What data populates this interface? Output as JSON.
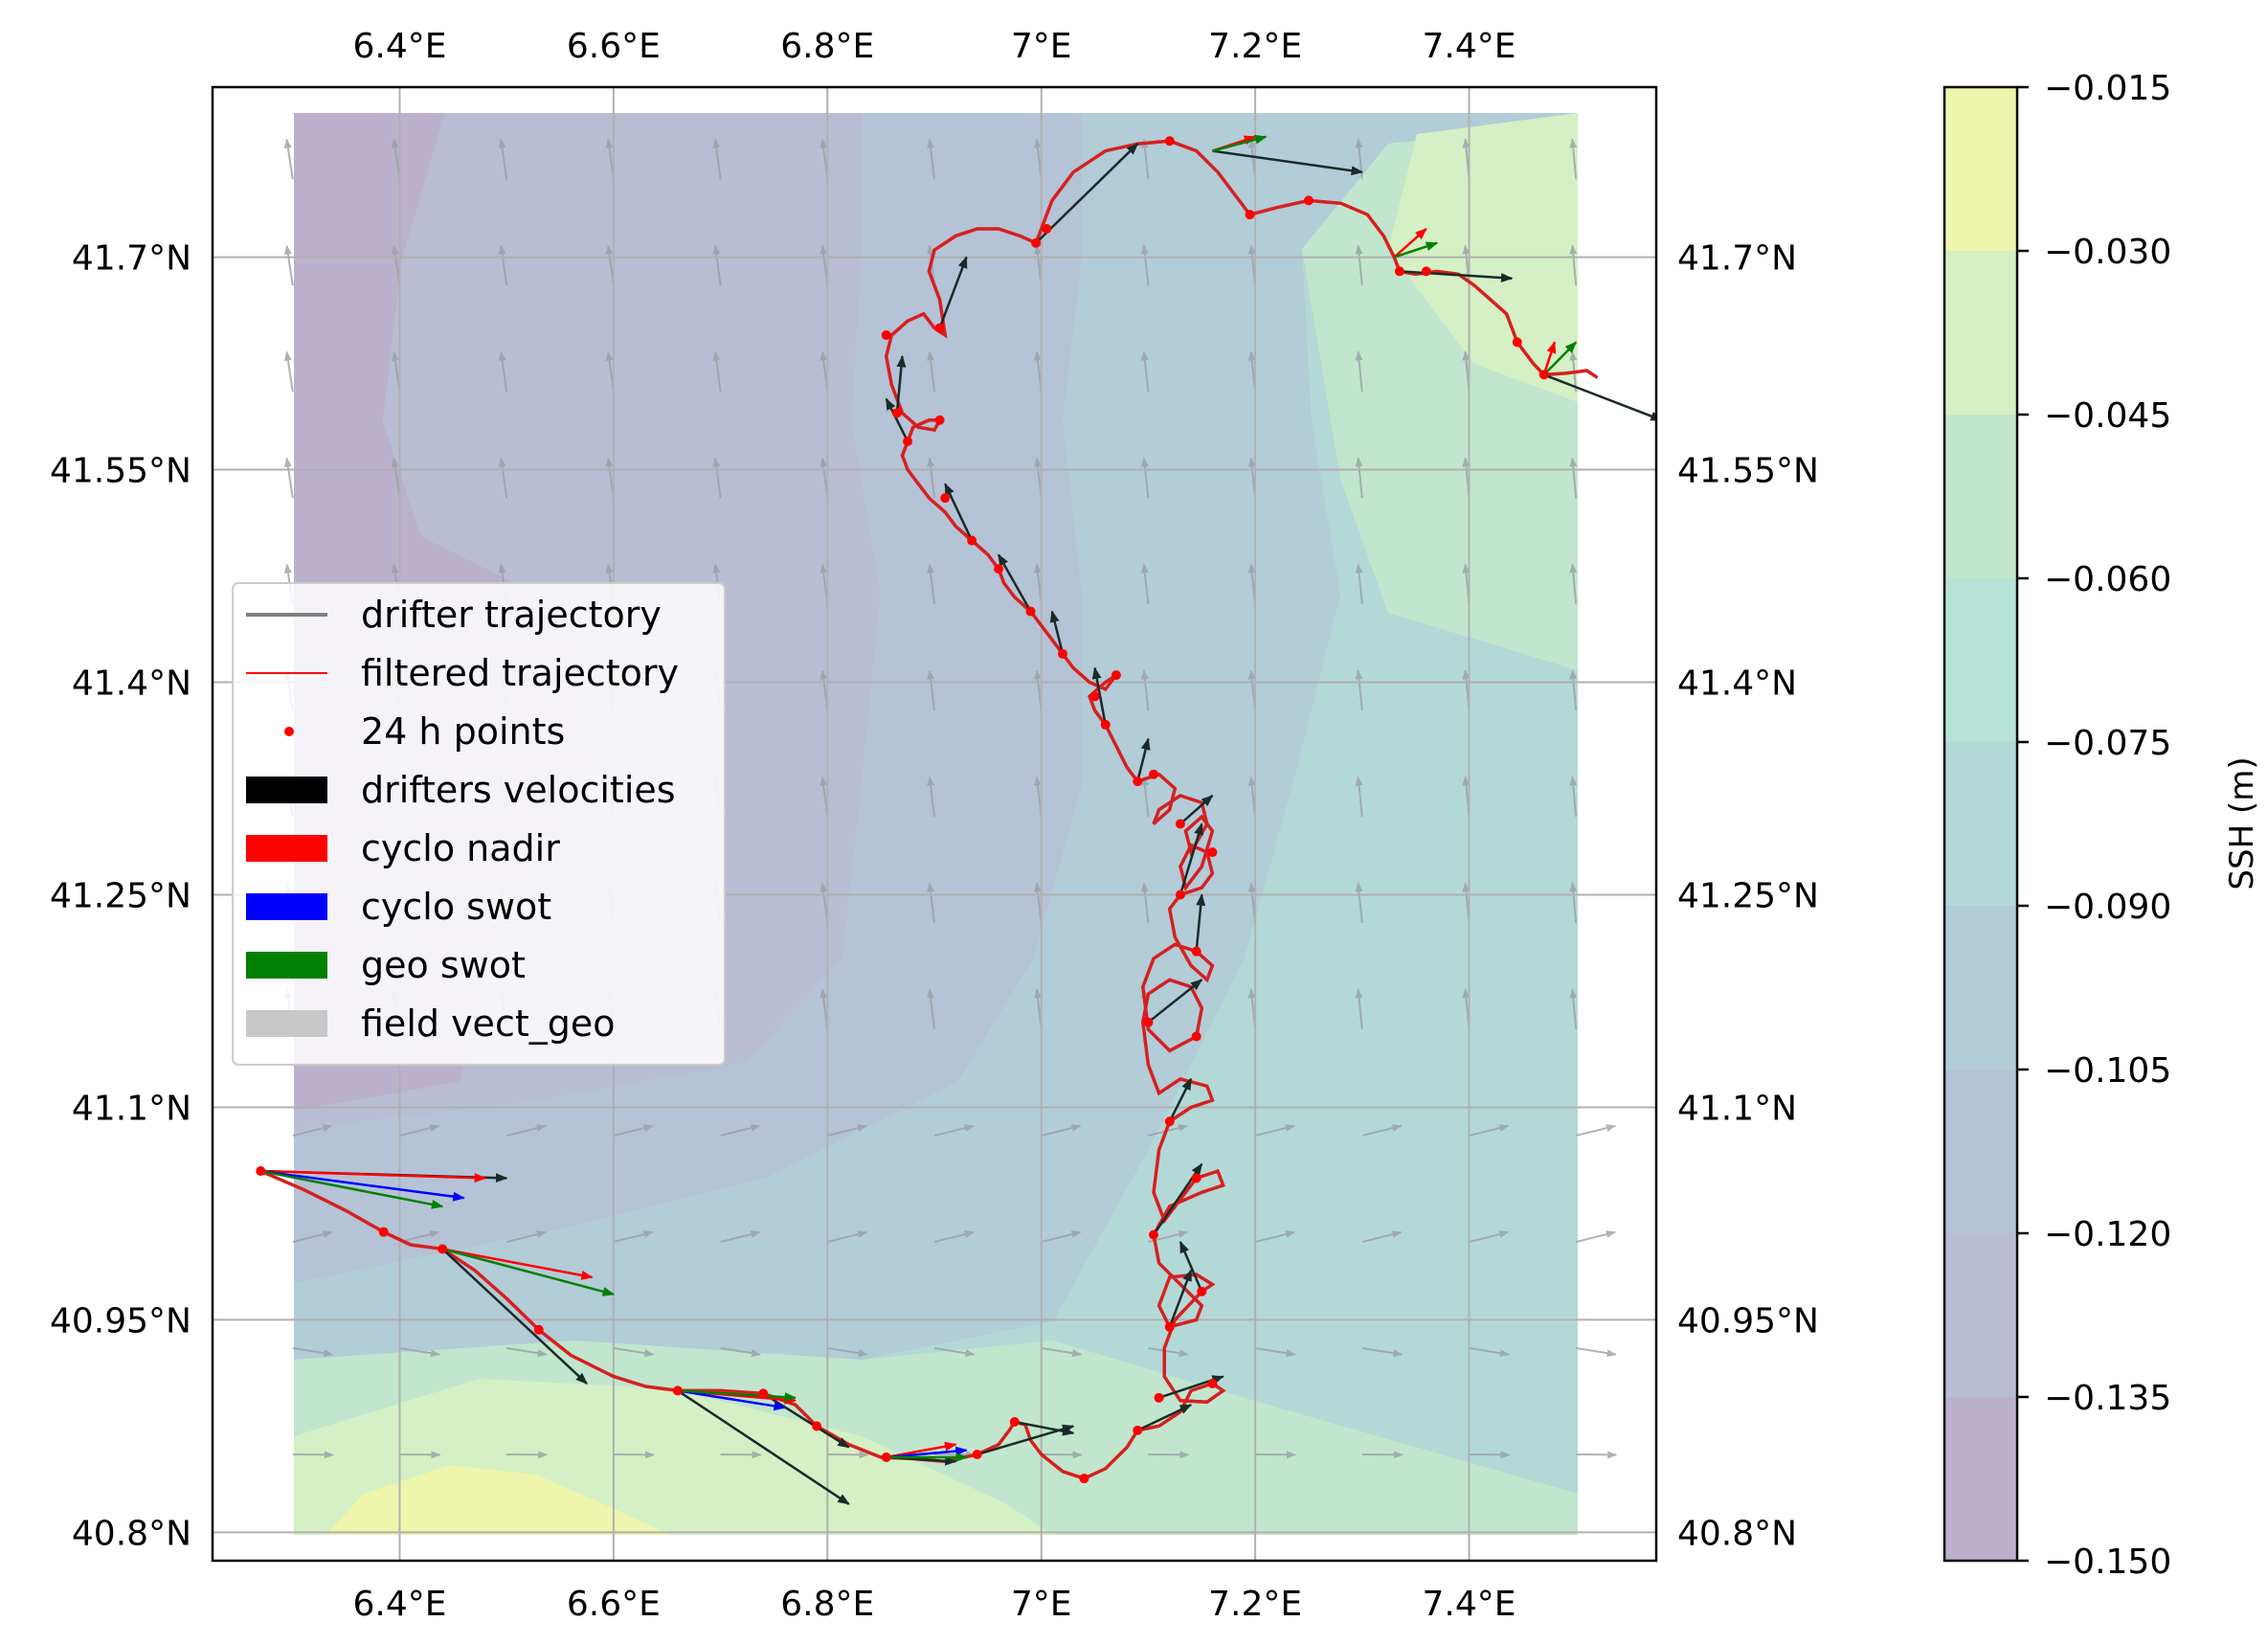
{
  "chart_data": {
    "type": "map",
    "lon_ticks": [
      "6.4°E",
      "6.6°E",
      "6.8°E",
      "7°E",
      "7.2°E",
      "7.4°E"
    ],
    "lon_values": [
      6.4,
      6.6,
      6.8,
      7.0,
      7.2,
      7.4
    ],
    "lat_ticks": [
      "41.7°N",
      "41.55°N",
      "41.4°N",
      "41.25°N",
      "41.1°N",
      "40.95°N",
      "40.8°N"
    ],
    "lat_values": [
      41.7,
      41.55,
      41.4,
      41.25,
      41.1,
      40.95,
      40.8
    ],
    "lon_range": [
      6.225,
      7.575
    ],
    "lat_range": [
      40.78,
      41.82
    ],
    "grid": true,
    "colorbar": {
      "label": "SSH (m)",
      "ticks": [
        "−0.015",
        "−0.030",
        "−0.045",
        "−0.060",
        "−0.075",
        "−0.090",
        "−0.105",
        "−0.120",
        "−0.135",
        "−0.150"
      ],
      "levels": [
        -0.15,
        -0.135,
        -0.12,
        -0.105,
        -0.09,
        -0.075,
        -0.06,
        -0.045,
        -0.03,
        -0.015
      ],
      "colors": [
        "#bbb1cc",
        "#b8bdd3",
        "#b5c3d6",
        "#b2ccd8",
        "#b3d9d6",
        "#b6e2d8",
        "#c1e6cd",
        "#d4f0c4",
        "#eef5ad"
      ]
    },
    "legend": {
      "placement": "center-left",
      "items": [
        {
          "label": "drifter trajectory",
          "color": "#808080",
          "kind": "line"
        },
        {
          "label": "filtered trajectory",
          "color": "#ff0000",
          "kind": "thin-line"
        },
        {
          "label": "24 h points",
          "color": "#ff0000",
          "kind": "dot"
        },
        {
          "label": "drifters velocities",
          "color": "#000000",
          "kind": "patch"
        },
        {
          "label": "cyclo nadir",
          "color": "#ff0000",
          "kind": "patch"
        },
        {
          "label": "cyclo swot",
          "color": "#0000ff",
          "kind": "patch"
        },
        {
          "label": "geo swot",
          "color": "#008000",
          "kind": "patch"
        },
        {
          "label": "field vect_geo",
          "color": "#c8c8c8",
          "kind": "patch"
        }
      ]
    },
    "trajectory": [
      [
        6.27,
        41.055
      ],
      [
        6.31,
        41.042
      ],
      [
        6.35,
        41.027
      ],
      [
        6.385,
        41.012
      ],
      [
        6.41,
        41.003
      ],
      [
        6.44,
        41.0
      ],
      [
        6.47,
        40.985
      ],
      [
        6.5,
        40.965
      ],
      [
        6.53,
        40.943
      ],
      [
        6.56,
        40.925
      ],
      [
        6.6,
        40.91
      ],
      [
        6.63,
        40.903
      ],
      [
        6.66,
        40.9
      ],
      [
        6.7,
        40.9
      ],
      [
        6.74,
        40.898
      ],
      [
        6.77,
        40.89
      ],
      [
        6.79,
        40.875
      ],
      [
        6.82,
        40.862
      ],
      [
        6.85,
        40.853
      ],
      [
        6.88,
        40.852
      ],
      [
        6.91,
        40.85
      ],
      [
        6.94,
        40.855
      ],
      [
        6.96,
        40.862
      ],
      [
        6.97,
        40.872
      ],
      [
        6.975,
        40.878
      ],
      [
        6.985,
        40.876
      ],
      [
        6.99,
        40.865
      ],
      [
        7.0,
        40.855
      ],
      [
        7.02,
        40.843
      ],
      [
        7.04,
        40.838
      ],
      [
        7.06,
        40.845
      ],
      [
        7.08,
        40.86
      ],
      [
        7.09,
        40.872
      ],
      [
        7.11,
        40.875
      ],
      [
        7.13,
        40.885
      ],
      [
        7.14,
        40.9
      ],
      [
        7.16,
        40.905
      ],
      [
        7.17,
        40.9
      ],
      [
        7.155,
        40.892
      ],
      [
        7.13,
        40.893
      ],
      [
        7.115,
        40.91
      ],
      [
        7.115,
        40.93
      ],
      [
        7.125,
        40.95
      ],
      [
        7.15,
        40.97
      ],
      [
        7.16,
        40.975
      ],
      [
        7.145,
        40.982
      ],
      [
        7.12,
        40.98
      ],
      [
        7.11,
        40.96
      ],
      [
        7.12,
        40.945
      ],
      [
        7.145,
        40.95
      ],
      [
        7.15,
        40.96
      ],
      [
        7.13,
        40.975
      ],
      [
        7.11,
        40.99
      ],
      [
        7.105,
        41.01
      ],
      [
        7.12,
        41.03
      ],
      [
        7.15,
        41.04
      ],
      [
        7.17,
        41.045
      ],
      [
        7.165,
        41.055
      ],
      [
        7.145,
        41.05
      ],
      [
        7.13,
        41.035
      ],
      [
        7.115,
        41.02
      ],
      [
        7.105,
        41.04
      ],
      [
        7.11,
        41.07
      ],
      [
        7.12,
        41.09
      ],
      [
        7.14,
        41.1
      ],
      [
        7.16,
        41.105
      ],
      [
        7.155,
        41.115
      ],
      [
        7.13,
        41.12
      ],
      [
        7.11,
        41.11
      ],
      [
        7.1,
        41.13
      ],
      [
        7.095,
        41.16
      ],
      [
        7.1,
        41.18
      ],
      [
        7.12,
        41.19
      ],
      [
        7.14,
        41.185
      ],
      [
        7.15,
        41.17
      ],
      [
        7.145,
        41.15
      ],
      [
        7.12,
        41.14
      ],
      [
        7.1,
        41.155
      ],
      [
        7.095,
        41.185
      ],
      [
        7.105,
        41.205
      ],
      [
        7.125,
        41.215
      ],
      [
        7.145,
        41.21
      ],
      [
        7.16,
        41.2
      ],
      [
        7.155,
        41.19
      ],
      [
        7.14,
        41.2
      ],
      [
        7.125,
        41.22
      ],
      [
        7.12,
        41.24
      ],
      [
        7.13,
        41.25
      ],
      [
        7.15,
        41.255
      ],
      [
        7.16,
        41.265
      ],
      [
        7.155,
        41.28
      ],
      [
        7.14,
        41.285
      ],
      [
        7.13,
        41.27
      ],
      [
        7.135,
        41.255
      ],
      [
        7.15,
        41.27
      ],
      [
        7.16,
        41.295
      ],
      [
        7.15,
        41.305
      ],
      [
        7.135,
        41.295
      ],
      [
        7.14,
        41.28
      ],
      [
        7.155,
        41.3
      ],
      [
        7.15,
        41.315
      ],
      [
        7.13,
        41.32
      ],
      [
        7.11,
        41.31
      ],
      [
        7.105,
        41.3
      ],
      [
        7.12,
        41.31
      ],
      [
        7.125,
        41.325
      ],
      [
        7.11,
        41.335
      ],
      [
        7.09,
        41.33
      ],
      [
        7.08,
        41.34
      ],
      [
        7.07,
        41.355
      ],
      [
        7.06,
        41.37
      ],
      [
        7.05,
        41.38
      ],
      [
        7.045,
        41.39
      ],
      [
        7.06,
        41.4
      ],
      [
        7.07,
        41.405
      ],
      [
        7.06,
        41.395
      ],
      [
        7.045,
        41.4
      ],
      [
        7.03,
        41.41
      ],
      [
        7.02,
        41.42
      ],
      [
        7.01,
        41.43
      ],
      [
        7.0,
        41.44
      ],
      [
        6.99,
        41.45
      ],
      [
        6.975,
        41.46
      ],
      [
        6.965,
        41.47
      ],
      [
        6.96,
        41.48
      ],
      [
        6.95,
        41.49
      ],
      [
        6.935,
        41.5
      ],
      [
        6.92,
        41.51
      ],
      [
        6.91,
        41.52
      ],
      [
        6.895,
        41.53
      ],
      [
        6.885,
        41.54
      ],
      [
        6.875,
        41.55
      ],
      [
        6.87,
        41.56
      ],
      [
        6.875,
        41.57
      ],
      [
        6.88,
        41.58
      ],
      [
        6.895,
        41.585
      ],
      [
        6.905,
        41.585
      ],
      [
        6.9,
        41.578
      ],
      [
        6.885,
        41.58
      ],
      [
        6.87,
        41.59
      ],
      [
        6.86,
        41.61
      ],
      [
        6.855,
        41.63
      ],
      [
        6.86,
        41.645
      ],
      [
        6.875,
        41.655
      ],
      [
        6.89,
        41.66
      ],
      [
        6.9,
        41.65
      ],
      [
        6.91,
        41.645
      ],
      [
        6.905,
        41.67
      ],
      [
        6.895,
        41.69
      ],
      [
        6.9,
        41.705
      ],
      [
        6.92,
        41.715
      ],
      [
        6.94,
        41.72
      ],
      [
        6.96,
        41.72
      ],
      [
        6.98,
        41.715
      ],
      [
        6.995,
        41.71
      ],
      [
        7.0,
        41.72
      ],
      [
        7.01,
        41.74
      ],
      [
        7.03,
        41.76
      ],
      [
        7.06,
        41.775
      ],
      [
        7.09,
        41.78
      ],
      [
        7.12,
        41.782
      ],
      [
        7.145,
        41.775
      ],
      [
        7.165,
        41.76
      ],
      [
        7.18,
        41.745
      ],
      [
        7.195,
        41.73
      ],
      [
        7.22,
        41.735
      ],
      [
        7.25,
        41.74
      ],
      [
        7.28,
        41.738
      ],
      [
        7.305,
        41.73
      ],
      [
        7.32,
        41.715
      ],
      [
        7.33,
        41.7
      ],
      [
        7.335,
        41.69
      ],
      [
        7.35,
        41.688
      ],
      [
        7.37,
        41.69
      ],
      [
        7.39,
        41.688
      ],
      [
        7.405,
        41.68
      ],
      [
        7.42,
        41.67
      ],
      [
        7.435,
        41.66
      ],
      [
        7.445,
        41.64
      ],
      [
        7.46,
        41.625
      ],
      [
        7.47,
        41.617
      ],
      [
        7.49,
        41.618
      ],
      [
        7.51,
        41.62
      ],
      [
        7.52,
        41.615
      ]
    ],
    "points_24h": [
      [
        6.27,
        41.055
      ],
      [
        6.385,
        41.012
      ],
      [
        6.44,
        41.0
      ],
      [
        6.53,
        40.943
      ],
      [
        6.66,
        40.9
      ],
      [
        6.74,
        40.898
      ],
      [
        6.79,
        40.875
      ],
      [
        6.855,
        40.853
      ],
      [
        6.94,
        40.855
      ],
      [
        6.975,
        40.878
      ],
      [
        7.04,
        40.838
      ],
      [
        7.09,
        40.872
      ],
      [
        7.11,
        40.895
      ],
      [
        7.16,
        40.905
      ],
      [
        7.12,
        40.945
      ],
      [
        7.15,
        40.97
      ],
      [
        7.105,
        41.01
      ],
      [
        7.145,
        41.05
      ],
      [
        7.12,
        41.09
      ],
      [
        7.1,
        41.16
      ],
      [
        7.145,
        41.15
      ],
      [
        7.145,
        41.21
      ],
      [
        7.13,
        41.25
      ],
      [
        7.16,
        41.28
      ],
      [
        7.13,
        41.3
      ],
      [
        7.105,
        41.335
      ],
      [
        7.09,
        41.33
      ],
      [
        7.06,
        41.37
      ],
      [
        7.05,
        41.39
      ],
      [
        7.07,
        41.405
      ],
      [
        7.02,
        41.42
      ],
      [
        6.99,
        41.45
      ],
      [
        6.96,
        41.48
      ],
      [
        6.935,
        41.5
      ],
      [
        6.91,
        41.53
      ],
      [
        6.875,
        41.57
      ],
      [
        6.905,
        41.585
      ],
      [
        6.865,
        41.59
      ],
      [
        6.855,
        41.645
      ],
      [
        6.905,
        41.65
      ],
      [
        6.995,
        41.71
      ],
      [
        7.005,
        41.72
      ],
      [
        7.12,
        41.782
      ],
      [
        7.195,
        41.73
      ],
      [
        7.25,
        41.74
      ],
      [
        7.335,
        41.69
      ],
      [
        7.36,
        41.69
      ],
      [
        7.445,
        41.64
      ],
      [
        7.47,
        41.617
      ]
    ],
    "drifter_velocity_arrows": [
      [
        6.27,
        41.055,
        6.5,
        41.05
      ],
      [
        6.44,
        41.0,
        6.575,
        40.905
      ],
      [
        6.66,
        40.9,
        6.82,
        40.82
      ],
      [
        6.74,
        40.898,
        6.82,
        40.86
      ],
      [
        6.855,
        40.853,
        6.92,
        40.85
      ],
      [
        6.94,
        40.855,
        7.03,
        40.875
      ],
      [
        6.975,
        40.878,
        7.03,
        40.87
      ],
      [
        7.09,
        40.872,
        7.14,
        40.89
      ],
      [
        7.11,
        40.895,
        7.17,
        40.91
      ],
      [
        7.12,
        40.945,
        7.14,
        40.985
      ],
      [
        7.15,
        40.97,
        7.13,
        41.005
      ],
      [
        7.105,
        41.01,
        7.15,
        41.06
      ],
      [
        7.12,
        41.09,
        7.14,
        41.12
      ],
      [
        7.1,
        41.16,
        7.15,
        41.19
      ],
      [
        7.145,
        41.21,
        7.15,
        41.25
      ],
      [
        7.13,
        41.25,
        7.15,
        41.3
      ],
      [
        7.13,
        41.3,
        7.16,
        41.32
      ],
      [
        7.09,
        41.33,
        7.1,
        41.36
      ],
      [
        7.06,
        41.37,
        7.05,
        41.41
      ],
      [
        7.02,
        41.42,
        7.01,
        41.45
      ],
      [
        6.99,
        41.45,
        6.96,
        41.49
      ],
      [
        6.935,
        41.5,
        6.91,
        41.54
      ],
      [
        6.875,
        41.57,
        6.855,
        41.6
      ],
      [
        6.865,
        41.59,
        6.87,
        41.63
      ],
      [
        6.905,
        41.65,
        6.93,
        41.7
      ],
      [
        6.995,
        41.71,
        7.09,
        41.78
      ],
      [
        7.16,
        41.775,
        7.3,
        41.76
      ],
      [
        7.335,
        41.69,
        7.44,
        41.685
      ],
      [
        7.47,
        41.617,
        7.58,
        41.585
      ]
    ],
    "model_arrows": [
      {
        "series": "cyclo nadir",
        "color": "#ff0000",
        "arrows": [
          [
            6.27,
            41.055,
            6.48,
            41.05
          ],
          [
            6.44,
            41.0,
            6.58,
            40.98
          ],
          [
            6.66,
            40.9,
            6.77,
            40.893
          ],
          [
            6.855,
            40.853,
            6.92,
            40.862
          ],
          [
            7.16,
            41.775,
            7.2,
            41.785
          ],
          [
            7.33,
            41.7,
            7.36,
            41.72
          ],
          [
            7.47,
            41.617,
            7.48,
            41.64
          ]
        ]
      },
      {
        "series": "cyclo swot",
        "color": "#0000ff",
        "arrows": [
          [
            6.27,
            41.055,
            6.46,
            41.036
          ],
          [
            6.66,
            40.9,
            6.76,
            40.888
          ],
          [
            6.855,
            40.853,
            6.93,
            40.858
          ]
        ]
      },
      {
        "series": "geo swot",
        "color": "#008000",
        "arrows": [
          [
            6.27,
            41.055,
            6.44,
            41.03
          ],
          [
            6.44,
            41.0,
            6.6,
            40.968
          ],
          [
            6.66,
            40.9,
            6.77,
            40.895
          ],
          [
            6.855,
            40.853,
            6.93,
            40.853
          ],
          [
            7.16,
            41.775,
            7.21,
            41.785
          ],
          [
            7.33,
            41.7,
            7.37,
            41.71
          ],
          [
            7.47,
            41.617,
            7.5,
            41.64
          ]
        ]
      }
    ]
  }
}
